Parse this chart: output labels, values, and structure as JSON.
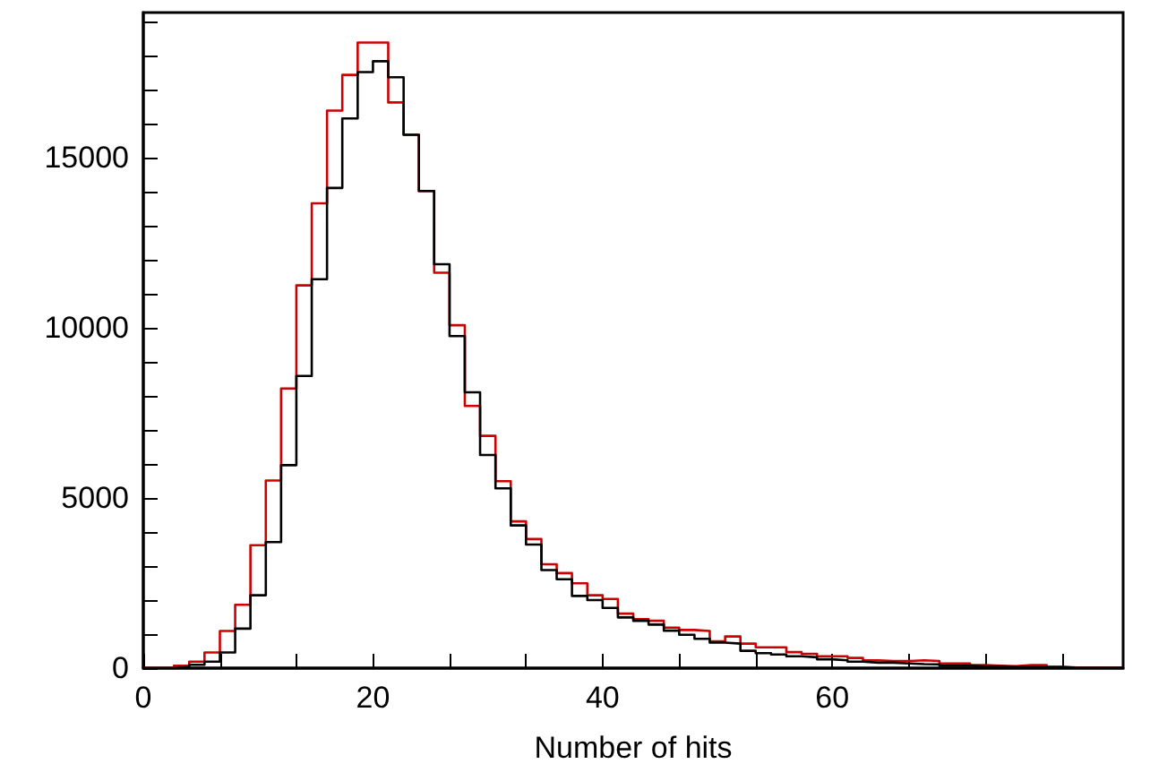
{
  "chart_data": {
    "type": "histogram",
    "xlabel": "Number of hits",
    "bins": [
      0,
      1.33,
      2.67,
      4,
      5.33,
      6.67,
      8,
      9.33,
      10.67,
      12,
      13.33,
      14.67,
      16,
      17.33,
      18.67,
      20,
      21.33,
      22.67,
      24,
      25.33,
      26.67,
      28,
      29.33,
      30.67,
      32,
      33.33,
      34.67,
      36,
      37.33,
      38.67,
      40,
      41.33,
      42.67,
      44,
      45.33,
      46.67,
      48,
      49.33,
      50.67,
      52,
      53.33,
      54.67,
      56,
      57.33,
      58.67,
      60,
      61.33,
      62.67,
      64,
      65.33,
      66.67,
      68,
      69.33,
      70.67,
      72,
      73.33,
      74.67,
      76,
      77.33,
      78.67,
      80,
      81.33,
      82.67,
      84,
      85.33
    ],
    "series": [
      {
        "color": "#cc0000",
        "values": [
          0,
          0,
          70,
          190,
          460,
          1090,
          1860,
          3610,
          5510,
          8210,
          11240,
          13650,
          16370,
          17420,
          18370,
          18370,
          16610,
          15660,
          14010,
          11610,
          10070,
          7700,
          6820,
          5490,
          4310,
          3790,
          3050,
          2790,
          2490,
          2140,
          2030,
          1600,
          1440,
          1390,
          1190,
          1120,
          1090,
          790,
          930,
          720,
          610,
          610,
          470,
          420,
          350,
          350,
          300,
          230,
          210,
          210,
          230,
          210,
          140,
          140,
          90,
          70,
          60,
          90,
          90,
          40,
          20,
          20,
          10,
          10
        ]
      },
      {
        "color": "#000000",
        "values": [
          0,
          0,
          30,
          100,
          190,
          460,
          1160,
          2140,
          3700,
          5960,
          8580,
          11420,
          14100,
          16140,
          17500,
          17820,
          17350,
          15660,
          14010,
          11860,
          9750,
          8100,
          6260,
          5280,
          4190,
          3630,
          2880,
          2610,
          2120,
          2000,
          1770,
          1490,
          1390,
          1280,
          1100,
          980,
          860,
          750,
          720,
          510,
          440,
          400,
          350,
          320,
          260,
          230,
          190,
          160,
          160,
          140,
          120,
          110,
          70,
          70,
          50,
          50,
          40,
          40,
          30,
          30,
          10,
          10,
          10,
          10
        ]
      }
    ],
    "xlim": [
      0,
      85.33
    ],
    "xticks": [
      0,
      {
        "value": 6.67,
        "label": null
      },
      {
        "value": 13.33,
        "label": null
      },
      20,
      {
        "value": 26.67,
        "label": null
      },
      {
        "value": 33.33,
        "label": null
      },
      40,
      {
        "value": 46.67,
        "label": null
      },
      {
        "value": 53.33,
        "label": null
      },
      60,
      {
        "value": 66.67,
        "label": null
      },
      {
        "value": 73.33,
        "label": null
      },
      {
        "value": 80,
        "label": null
      }
    ],
    "ylim": [
      0,
      19250
    ],
    "yticks": [
      0,
      {
        "value": 1000,
        "label": null
      },
      {
        "value": 2000,
        "label": null
      },
      {
        "value": 3000,
        "label": null
      },
      {
        "value": 4000,
        "label": null
      },
      5000,
      {
        "value": 6000,
        "label": null
      },
      {
        "value": 7000,
        "label": null
      },
      {
        "value": 8000,
        "label": null
      },
      {
        "value": 9000,
        "label": null
      },
      10000,
      {
        "value": 11000,
        "label": null
      },
      {
        "value": 12000,
        "label": null
      },
      {
        "value": 13000,
        "label": null
      },
      {
        "value": 14000,
        "label": null
      },
      15000,
      {
        "value": 16000,
        "label": null
      },
      {
        "value": 17000,
        "label": null
      },
      {
        "value": 18000,
        "label": null
      },
      {
        "value": 19000,
        "label": null
      }
    ],
    "grid": false
  }
}
